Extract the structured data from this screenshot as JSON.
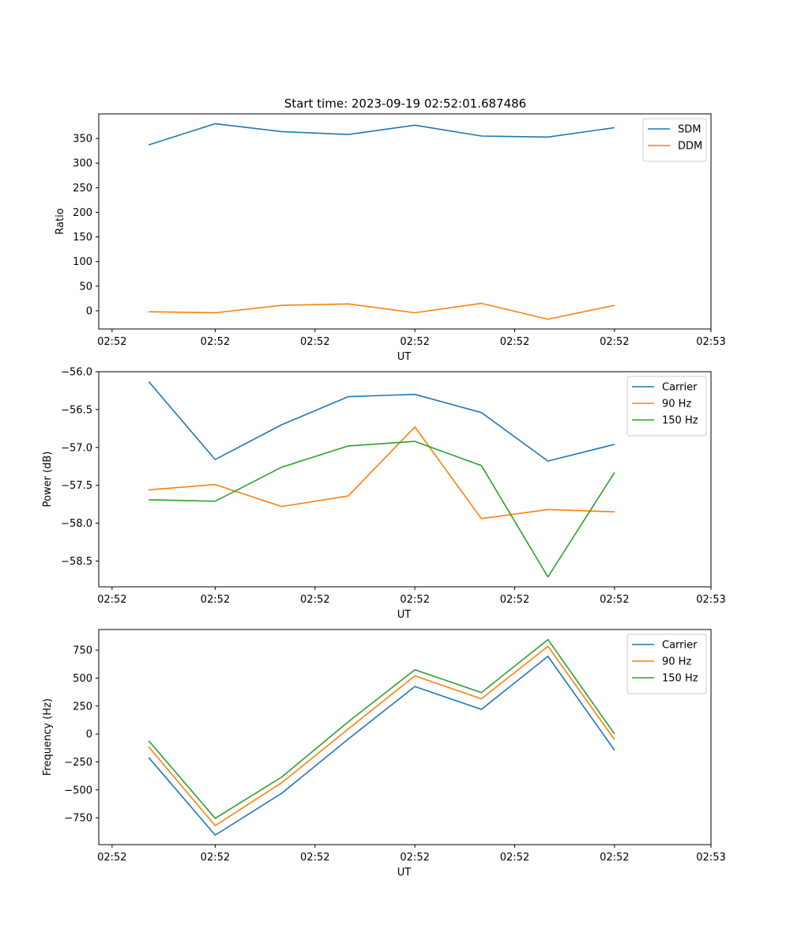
{
  "title": "Start time: 2023-09-19 02:52:01.687486",
  "colors": {
    "blue": "#1f77b4",
    "orange": "#ff7f0e",
    "green": "#2ca02c"
  },
  "chart_data": [
    {
      "type": "line",
      "name": "ratio",
      "xlabel": "UT",
      "ylabel": "Ratio",
      "x": [
        1,
        2,
        3,
        4,
        5,
        6,
        7,
        8
      ],
      "xlim": [
        0.25,
        9.45
      ],
      "xticks": [
        0.45,
        2,
        3.5,
        5,
        6.5,
        8,
        9.45
      ],
      "xtick_labels": [
        "02:52",
        "02:52",
        "02:52",
        "02:52",
        "02:52",
        "02:52",
        "02:53"
      ],
      "ylim": [
        -37,
        400
      ],
      "yticks": [
        0,
        50,
        100,
        150,
        200,
        250,
        300,
        350
      ],
      "ytick_labels": [
        "0",
        "50",
        "100",
        "150",
        "200",
        "250",
        "300",
        "350"
      ],
      "legend": "top-right",
      "series": [
        {
          "name": "SDM",
          "color": "#1f77b4",
          "values": [
            337,
            380,
            364,
            358,
            377,
            355,
            353,
            372
          ]
        },
        {
          "name": "DDM",
          "color": "#ff7f0e",
          "values": [
            -2,
            -4,
            11,
            14,
            -4,
            15,
            -17,
            11
          ]
        }
      ]
    },
    {
      "type": "line",
      "name": "power",
      "xlabel": "UT",
      "ylabel": "Power (dB)",
      "x": [
        1,
        2,
        3,
        4,
        5,
        6,
        7,
        8
      ],
      "xlim": [
        0.25,
        9.45
      ],
      "xticks": [
        0.45,
        2,
        3.5,
        5,
        6.5,
        8,
        9.45
      ],
      "xtick_labels": [
        "02:52",
        "02:52",
        "02:52",
        "02:52",
        "02:52",
        "02:52",
        "02:53"
      ],
      "ylim": [
        -58.84,
        -56.0
      ],
      "yticks": [
        -56.0,
        -56.5,
        -57.0,
        -57.5,
        -58.0,
        -58.5
      ],
      "ytick_labels": [
        "−56.0",
        "−56.5",
        "−57.0",
        "−57.5",
        "−58.0",
        "−58.5"
      ],
      "legend": "top-right",
      "series": [
        {
          "name": "Carrier",
          "color": "#1f77b4",
          "values": [
            -56.13,
            -57.16,
            -56.7,
            -56.33,
            -56.3,
            -56.54,
            -57.18,
            -56.96
          ]
        },
        {
          "name": "90 Hz",
          "color": "#ff7f0e",
          "values": [
            -57.56,
            -57.49,
            -57.78,
            -57.64,
            -56.73,
            -57.94,
            -57.82,
            -57.85
          ]
        },
        {
          "name": "150 Hz",
          "color": "#2ca02c",
          "values": [
            -57.69,
            -57.71,
            -57.26,
            -56.98,
            -56.92,
            -57.24,
            -58.71,
            -57.33
          ]
        }
      ]
    },
    {
      "type": "line",
      "name": "frequency",
      "xlabel": "UT",
      "ylabel": "Frequency (Hz)",
      "x": [
        1,
        2,
        3,
        4,
        5,
        6,
        7,
        8
      ],
      "xlim": [
        0.25,
        9.45
      ],
      "xticks": [
        0.45,
        2,
        3.5,
        5,
        6.5,
        8,
        9.45
      ],
      "xtick_labels": [
        "02:52",
        "02:52",
        "02:52",
        "02:52",
        "02:52",
        "02:52",
        "02:53"
      ],
      "ylim": [
        -990,
        935
      ],
      "yticks": [
        -750,
        -500,
        -250,
        0,
        250,
        500,
        750
      ],
      "ytick_labels": [
        "−750",
        "−500",
        "−250",
        "0",
        "250",
        "500",
        "750"
      ],
      "legend": "top-right",
      "series": [
        {
          "name": "Carrier",
          "color": "#1f77b4",
          "values": [
            -210,
            -905,
            -530,
            -45,
            425,
            220,
            695,
            -145
          ]
        },
        {
          "name": "90 Hz",
          "color": "#ff7f0e",
          "values": [
            -115,
            -820,
            -435,
            45,
            520,
            315,
            785,
            -50
          ]
        },
        {
          "name": "150 Hz",
          "color": "#2ca02c",
          "values": [
            -60,
            -755,
            -385,
            110,
            575,
            370,
            845,
            0
          ]
        }
      ]
    }
  ]
}
